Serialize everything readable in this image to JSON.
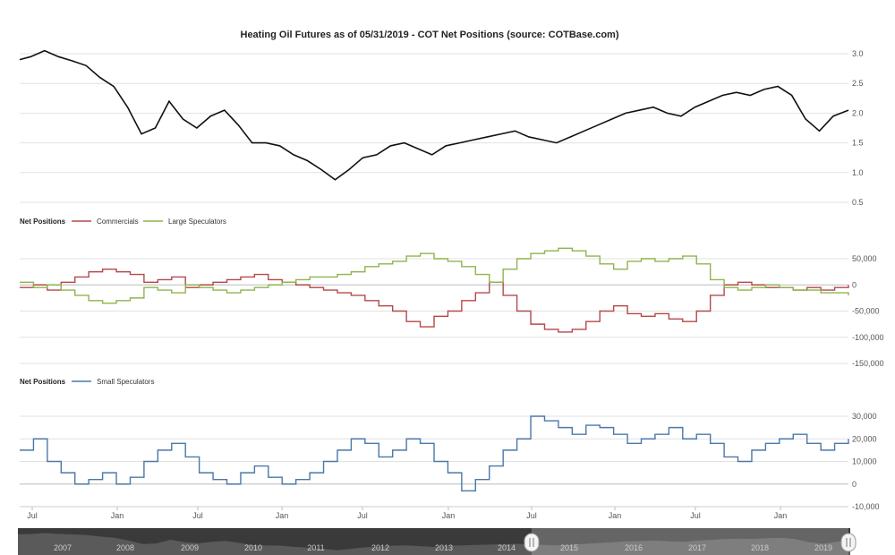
{
  "title": "Heating Oil Futures as of 05/31/2019 - COT Net Positions (source: COTBase.com)",
  "colors": {
    "price": "#111111",
    "commercials": "#b5484b",
    "large_speculators": "#8fb44d",
    "small_speculators": "#4a78a8",
    "grid": "#e2e2e2",
    "navigator_bg": "#3a3a3a",
    "navigator_mask": "rgba(255,255,255,0.25)"
  },
  "chart_data": [
    {
      "type": "line",
      "name": "price-chart",
      "ylim": [
        0.5,
        3.0
      ],
      "yticks": [
        "3.0",
        "2.5",
        "2.0",
        "1.5",
        "1.0",
        "0.5"
      ],
      "ytick_values": [
        3.0,
        2.5,
        2.0,
        1.5,
        1.0,
        0.5
      ],
      "xlim": [
        2013.42,
        2019.41
      ],
      "series": [
        {
          "x": [
            2013.42,
            2013.5,
            2013.6,
            2013.7,
            2013.8,
            2013.9,
            2014.0,
            2014.1,
            2014.2,
            2014.3,
            2014.4,
            2014.5,
            2014.6,
            2014.7,
            2014.8,
            2014.9,
            2015.0,
            2015.1,
            2015.2,
            2015.3,
            2015.4,
            2015.5,
            2015.6,
            2015.7,
            2015.8,
            2015.9,
            2016.0,
            2016.1,
            2016.2,
            2016.3,
            2016.4,
            2016.5,
            2016.6,
            2016.7,
            2016.8,
            2016.9,
            2017.0,
            2017.1,
            2017.2,
            2017.3,
            2017.4,
            2017.5,
            2017.6,
            2017.7,
            2017.8,
            2017.9,
            2018.0,
            2018.1,
            2018.2,
            2018.3,
            2018.4,
            2018.5,
            2018.6,
            2018.7,
            2018.8,
            2018.9,
            2019.0,
            2019.1,
            2019.2,
            2019.3,
            2019.41
          ],
          "values": [
            2.9,
            2.95,
            3.05,
            2.95,
            2.88,
            2.8,
            2.6,
            2.45,
            2.1,
            1.65,
            1.75,
            2.2,
            1.9,
            1.75,
            1.95,
            2.05,
            1.8,
            1.5,
            1.5,
            1.45,
            1.3,
            1.2,
            1.05,
            0.88,
            1.05,
            1.25,
            1.3,
            1.45,
            1.5,
            1.4,
            1.3,
            1.45,
            1.5,
            1.55,
            1.6,
            1.65,
            1.7,
            1.6,
            1.55,
            1.5,
            1.6,
            1.7,
            1.8,
            1.9,
            2.0,
            2.05,
            2.1,
            2.0,
            1.95,
            2.1,
            2.2,
            2.3,
            2.35,
            2.3,
            2.4,
            2.45,
            2.3,
            1.9,
            1.7,
            1.95,
            2.05
          ]
        }
      ]
    },
    {
      "type": "line",
      "name": "net-positions-chart",
      "legend_title": "Net Positions",
      "ylim": [
        -150000,
        50000
      ],
      "yticks": [
        "50,000",
        "0",
        "-50,000",
        "-100,000",
        "-150,000"
      ],
      "ytick_values": [
        50000,
        0,
        -50000,
        -100000,
        -150000
      ],
      "series": [
        {
          "name": "Commercials",
          "values": [
            -5000,
            0,
            -10000,
            5000,
            15000,
            25000,
            30000,
            25000,
            20000,
            5000,
            10000,
            15000,
            -5000,
            0,
            5000,
            10000,
            15000,
            20000,
            10000,
            5000,
            0,
            -5000,
            -10000,
            -15000,
            -20000,
            -30000,
            -40000,
            -50000,
            -70000,
            -80000,
            -60000,
            -50000,
            -30000,
            -15000,
            5000,
            -20000,
            -50000,
            -75000,
            -85000,
            -90000,
            -85000,
            -70000,
            -50000,
            -40000,
            -55000,
            -60000,
            -55000,
            -65000,
            -70000,
            -50000,
            -20000,
            0,
            5000,
            0,
            -5000,
            -5000,
            -10000,
            -5000,
            -10000,
            -5000,
            0
          ]
        },
        {
          "name": "Large Speculators",
          "values": [
            5000,
            -5000,
            0,
            -10000,
            -20000,
            -30000,
            -35000,
            -30000,
            -25000,
            -5000,
            -10000,
            -15000,
            0,
            -5000,
            -10000,
            -15000,
            -10000,
            -5000,
            0,
            5000,
            10000,
            15000,
            15000,
            20000,
            25000,
            35000,
            40000,
            45000,
            55000,
            60000,
            50000,
            45000,
            35000,
            20000,
            5000,
            30000,
            50000,
            60000,
            65000,
            70000,
            65000,
            55000,
            40000,
            30000,
            45000,
            50000,
            45000,
            50000,
            55000,
            40000,
            10000,
            -5000,
            -10000,
            -5000,
            0,
            -5000,
            -10000,
            -10000,
            -15000,
            -15000,
            -20000
          ]
        }
      ]
    },
    {
      "type": "line",
      "name": "small-speculators-chart",
      "legend_title": "Net Positions",
      "ylim": [
        -10000,
        30000
      ],
      "yticks": [
        "30,000",
        "20,000",
        "10,000",
        "0",
        "-10,000"
      ],
      "ytick_values": [
        30000,
        20000,
        10000,
        0,
        -10000
      ],
      "series": [
        {
          "name": "Small Speculators",
          "values": [
            15000,
            20000,
            10000,
            5000,
            0,
            2000,
            5000,
            0,
            3000,
            10000,
            15000,
            18000,
            12000,
            5000,
            2000,
            0,
            5000,
            8000,
            3000,
            0,
            2000,
            5000,
            10000,
            15000,
            20000,
            18000,
            12000,
            15000,
            20000,
            18000,
            10000,
            5000,
            -3000,
            2000,
            8000,
            15000,
            20000,
            30000,
            28000,
            25000,
            22000,
            26000,
            25000,
            22000,
            18000,
            20000,
            22000,
            25000,
            20000,
            22000,
            18000,
            12000,
            10000,
            15000,
            18000,
            20000,
            22000,
            18000,
            15000,
            18000,
            20000
          ]
        }
      ]
    }
  ],
  "x_axis": {
    "labels": [
      "Jul",
      "Jan",
      "Jul",
      "Jan",
      "Jul",
      "Jan",
      "Jul",
      "Jan",
      "Jul",
      "Jan"
    ]
  },
  "navigator": {
    "years": [
      "2007",
      "2008",
      "2009",
      "2010",
      "2011",
      "2012",
      "2013",
      "2014",
      "2015",
      "2016",
      "2017",
      "2018",
      "2019"
    ],
    "range_start_label": "2013.5",
    "range_end_label": "2019.4"
  }
}
